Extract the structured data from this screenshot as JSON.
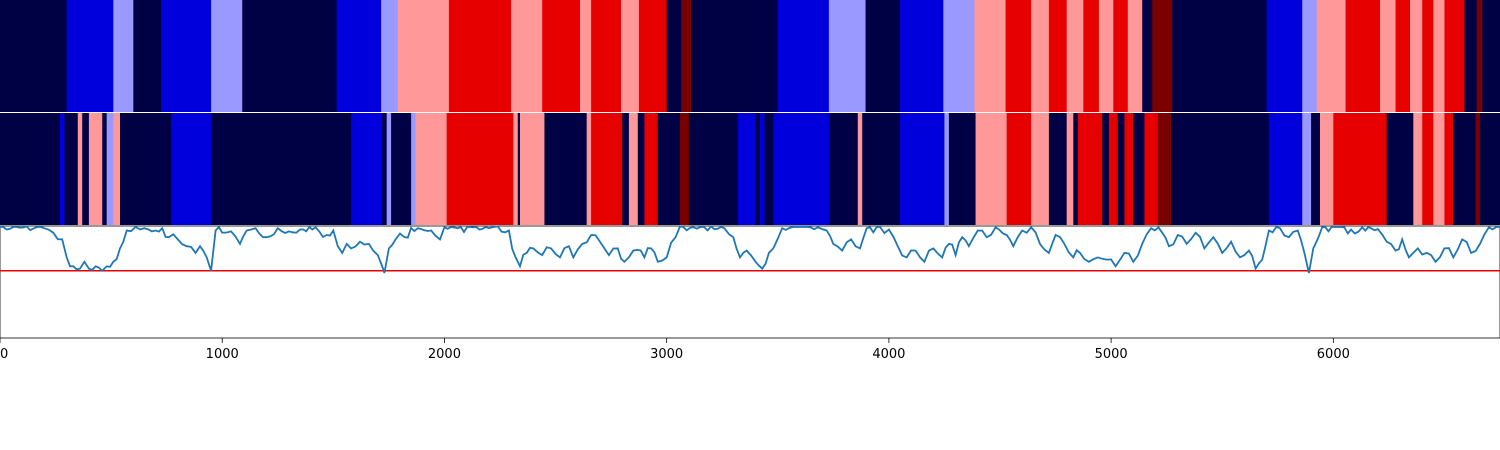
{
  "chart_data": {
    "type": "heatmap",
    "title": "",
    "xlabel": "",
    "ylabel": "",
    "xlim": [
      0,
      6750
    ],
    "grid": false,
    "legend": "none",
    "x_ticks": [
      0,
      1000,
      2000,
      3000,
      4000,
      5000,
      6000
    ],
    "x_tick_labels": [
      "0",
      "1000",
      "2000",
      "3000",
      "4000",
      "5000",
      "6000"
    ],
    "state_colors": {
      "0": "#000045",
      "1": "#0000dd",
      "2": "#9999ff",
      "3": "#ff9999",
      "4": "#e60000",
      "5": "#7a0000"
    },
    "tracks": [
      {
        "segments": [
          [
            0,
            300,
            0
          ],
          [
            300,
            510,
            1
          ],
          [
            510,
            600,
            2
          ],
          [
            600,
            725,
            0
          ],
          [
            725,
            950,
            1
          ],
          [
            950,
            1090,
            2
          ],
          [
            1090,
            1515,
            0
          ],
          [
            1515,
            1715,
            1
          ],
          [
            1715,
            1790,
            2
          ],
          [
            1790,
            2020,
            3
          ],
          [
            2020,
            2300,
            4
          ],
          [
            2300,
            2440,
            3
          ],
          [
            2440,
            2610,
            4
          ],
          [
            2610,
            2660,
            3
          ],
          [
            2660,
            2795,
            4
          ],
          [
            2795,
            2875,
            3
          ],
          [
            2875,
            3000,
            4
          ],
          [
            3000,
            3065,
            0
          ],
          [
            3065,
            3110,
            5
          ],
          [
            3110,
            3500,
            0
          ],
          [
            3500,
            3730,
            1
          ],
          [
            3730,
            3895,
            2
          ],
          [
            3895,
            4050,
            0
          ],
          [
            4050,
            4245,
            1
          ],
          [
            4245,
            4385,
            2
          ],
          [
            4385,
            4525,
            3
          ],
          [
            4525,
            4640,
            4
          ],
          [
            4640,
            4720,
            3
          ],
          [
            4720,
            4800,
            4
          ],
          [
            4800,
            4875,
            3
          ],
          [
            4875,
            4945,
            4
          ],
          [
            4945,
            5010,
            3
          ],
          [
            5010,
            5075,
            4
          ],
          [
            5075,
            5140,
            3
          ],
          [
            5140,
            5185,
            0
          ],
          [
            5185,
            5275,
            5
          ],
          [
            5275,
            5700,
            0
          ],
          [
            5700,
            5860,
            1
          ],
          [
            5860,
            5925,
            2
          ],
          [
            5925,
            6055,
            3
          ],
          [
            6055,
            6210,
            4
          ],
          [
            6210,
            6280,
            3
          ],
          [
            6280,
            6345,
            4
          ],
          [
            6345,
            6400,
            3
          ],
          [
            6400,
            6450,
            4
          ],
          [
            6450,
            6500,
            3
          ],
          [
            6500,
            6590,
            4
          ],
          [
            6590,
            6645,
            0
          ],
          [
            6645,
            6670,
            5
          ],
          [
            6670,
            6750,
            0
          ]
        ]
      },
      {
        "segments": [
          [
            0,
            270,
            0
          ],
          [
            270,
            290,
            1
          ],
          [
            290,
            350,
            0
          ],
          [
            350,
            370,
            3
          ],
          [
            370,
            400,
            0
          ],
          [
            400,
            460,
            3
          ],
          [
            460,
            480,
            0
          ],
          [
            480,
            510,
            2
          ],
          [
            510,
            540,
            3
          ],
          [
            540,
            770,
            0
          ],
          [
            770,
            950,
            1
          ],
          [
            950,
            1580,
            0
          ],
          [
            1580,
            1720,
            1
          ],
          [
            1720,
            1740,
            0
          ],
          [
            1740,
            1760,
            2
          ],
          [
            1760,
            1850,
            0
          ],
          [
            1850,
            1870,
            2
          ],
          [
            1870,
            2010,
            3
          ],
          [
            2010,
            2310,
            4
          ],
          [
            2310,
            2330,
            3
          ],
          [
            2330,
            2340,
            0
          ],
          [
            2340,
            2450,
            3
          ],
          [
            2450,
            2640,
            0
          ],
          [
            2640,
            2660,
            3
          ],
          [
            2660,
            2800,
            4
          ],
          [
            2800,
            2830,
            0
          ],
          [
            2830,
            2870,
            3
          ],
          [
            2870,
            2900,
            0
          ],
          [
            2900,
            2960,
            4
          ],
          [
            2960,
            3060,
            0
          ],
          [
            3060,
            3100,
            5
          ],
          [
            3100,
            3320,
            0
          ],
          [
            3320,
            3400,
            1
          ],
          [
            3400,
            3420,
            0
          ],
          [
            3420,
            3440,
            1
          ],
          [
            3440,
            3480,
            0
          ],
          [
            3480,
            3730,
            1
          ],
          [
            3730,
            3860,
            0
          ],
          [
            3860,
            3880,
            3
          ],
          [
            3880,
            4050,
            0
          ],
          [
            4050,
            4250,
            1
          ],
          [
            4250,
            4270,
            2
          ],
          [
            4270,
            4390,
            0
          ],
          [
            4390,
            4530,
            3
          ],
          [
            4530,
            4640,
            4
          ],
          [
            4640,
            4720,
            3
          ],
          [
            4720,
            4800,
            0
          ],
          [
            4800,
            4830,
            3
          ],
          [
            4830,
            4850,
            0
          ],
          [
            4850,
            4960,
            4
          ],
          [
            4960,
            4990,
            0
          ],
          [
            4990,
            5030,
            4
          ],
          [
            5030,
            5060,
            0
          ],
          [
            5060,
            5100,
            4
          ],
          [
            5100,
            5150,
            0
          ],
          [
            5150,
            5210,
            4
          ],
          [
            5210,
            5270,
            5
          ],
          [
            5270,
            5710,
            0
          ],
          [
            5710,
            5860,
            1
          ],
          [
            5860,
            5900,
            2
          ],
          [
            5900,
            5940,
            0
          ],
          [
            5940,
            6000,
            3
          ],
          [
            6000,
            6240,
            4
          ],
          [
            6240,
            6360,
            0
          ],
          [
            6360,
            6400,
            3
          ],
          [
            6400,
            6450,
            4
          ],
          [
            6450,
            6500,
            3
          ],
          [
            6500,
            6540,
            4
          ],
          [
            6540,
            6640,
            0
          ],
          [
            6640,
            6660,
            5
          ],
          [
            6660,
            6750,
            0
          ]
        ]
      }
    ],
    "signal": {
      "ylim": [
        -1.5,
        1.0
      ],
      "threshold": 0,
      "threshold_color": "#e60000",
      "line_color": "#1f77b4",
      "points": [
        [
          0,
          0.98
        ],
        [
          120,
          0.99
        ],
        [
          200,
          0.95
        ],
        [
          240,
          0.85
        ],
        [
          280,
          0.7
        ],
        [
          300,
          0.3
        ],
        [
          330,
          0.1
        ],
        [
          360,
          0.05
        ],
        [
          380,
          0.2
        ],
        [
          400,
          0.05
        ],
        [
          430,
          0.1
        ],
        [
          460,
          0.0
        ],
        [
          480,
          0.1
        ],
        [
          510,
          0.2
        ],
        [
          540,
          0.5
        ],
        [
          570,
          0.9
        ],
        [
          610,
          0.98
        ],
        [
          650,
          0.95
        ],
        [
          700,
          0.9
        ],
        [
          730,
          0.95
        ],
        [
          760,
          0.75
        ],
        [
          800,
          0.7
        ],
        [
          840,
          0.55
        ],
        [
          880,
          0.4
        ],
        [
          900,
          0.55
        ],
        [
          930,
          0.3
        ],
        [
          950,
          0.0
        ],
        [
          970,
          0.9
        ],
        [
          1000,
          0.85
        ],
        [
          1040,
          0.88
        ],
        [
          1080,
          0.6
        ],
        [
          1110,
          0.9
        ],
        [
          1150,
          0.95
        ],
        [
          1200,
          0.75
        ],
        [
          1250,
          0.95
        ],
        [
          1300,
          0.88
        ],
        [
          1350,
          0.92
        ],
        [
          1420,
          0.97
        ],
        [
          1470,
          0.8
        ],
        [
          1500,
          0.9
        ],
        [
          1520,
          0.55
        ],
        [
          1540,
          0.4
        ],
        [
          1560,
          0.6
        ],
        [
          1580,
          0.5
        ],
        [
          1620,
          0.65
        ],
        [
          1660,
          0.6
        ],
        [
          1700,
          0.35
        ],
        [
          1720,
          0.1
        ],
        [
          1730,
          -0.05
        ],
        [
          1750,
          0.5
        ],
        [
          1780,
          0.7
        ],
        [
          1820,
          0.75
        ],
        [
          1880,
          0.95
        ],
        [
          1940,
          0.9
        ],
        [
          1980,
          0.7
        ],
        [
          2000,
          0.97
        ],
        [
          2060,
          0.95
        ],
        [
          2130,
          0.97
        ],
        [
          2200,
          0.95
        ],
        [
          2240,
          0.99
        ],
        [
          2290,
          0.9
        ],
        [
          2320,
          0.3
        ],
        [
          2340,
          0.1
        ],
        [
          2370,
          0.4
        ],
        [
          2400,
          0.5
        ],
        [
          2440,
          0.35
        ],
        [
          2480,
          0.5
        ],
        [
          2520,
          0.3
        ],
        [
          2560,
          0.55
        ],
        [
          2580,
          0.3
        ],
        [
          2620,
          0.6
        ],
        [
          2660,
          0.8
        ],
        [
          2700,
          0.65
        ],
        [
          2740,
          0.35
        ],
        [
          2780,
          0.5
        ],
        [
          2810,
          0.2
        ],
        [
          2850,
          0.45
        ],
        [
          2900,
          0.3
        ],
        [
          2930,
          0.5
        ],
        [
          2960,
          0.2
        ],
        [
          3000,
          0.3
        ],
        [
          3040,
          0.75
        ],
        [
          3060,
          0.99
        ],
        [
          3120,
          0.97
        ],
        [
          3200,
          0.99
        ],
        [
          3260,
          0.95
        ],
        [
          3300,
          0.75
        ],
        [
          3330,
          0.3
        ],
        [
          3360,
          0.45
        ],
        [
          3400,
          0.2
        ],
        [
          3430,
          0.05
        ],
        [
          3460,
          0.4
        ],
        [
          3480,
          0.5
        ],
        [
          3520,
          0.95
        ],
        [
          3600,
          0.98
        ],
        [
          3680,
          0.97
        ],
        [
          3720,
          0.9
        ],
        [
          3750,
          0.6
        ],
        [
          3790,
          0.45
        ],
        [
          3830,
          0.7
        ],
        [
          3870,
          0.5
        ],
        [
          3900,
          0.95
        ],
        [
          3960,
          0.98
        ],
        [
          4000,
          0.92
        ],
        [
          4040,
          0.55
        ],
        [
          4080,
          0.3
        ],
        [
          4120,
          0.45
        ],
        [
          4160,
          0.2
        ],
        [
          4200,
          0.5
        ],
        [
          4240,
          0.3
        ],
        [
          4270,
          0.6
        ],
        [
          4300,
          0.35
        ],
        [
          4330,
          0.75
        ],
        [
          4360,
          0.55
        ],
        [
          4400,
          0.9
        ],
        [
          4440,
          0.75
        ],
        [
          4480,
          0.97
        ],
        [
          4530,
          0.8
        ],
        [
          4560,
          0.55
        ],
        [
          4600,
          0.9
        ],
        [
          4640,
          0.97
        ],
        [
          4680,
          0.6
        ],
        [
          4720,
          0.4
        ],
        [
          4750,
          0.8
        ],
        [
          4790,
          0.6
        ],
        [
          4830,
          0.3
        ],
        [
          4860,
          0.4
        ],
        [
          4900,
          0.2
        ],
        [
          4940,
          0.3
        ],
        [
          4980,
          0.25
        ],
        [
          5020,
          0.1
        ],
        [
          5060,
          0.4
        ],
        [
          5100,
          0.2
        ],
        [
          5140,
          0.6
        ],
        [
          5180,
          0.95
        ],
        [
          5230,
          0.85
        ],
        [
          5260,
          0.55
        ],
        [
          5300,
          0.8
        ],
        [
          5340,
          0.6
        ],
        [
          5380,
          0.85
        ],
        [
          5420,
          0.5
        ],
        [
          5460,
          0.75
        ],
        [
          5500,
          0.4
        ],
        [
          5540,
          0.65
        ],
        [
          5580,
          0.3
        ],
        [
          5620,
          0.45
        ],
        [
          5650,
          0.05
        ],
        [
          5680,
          0.25
        ],
        [
          5710,
          0.9
        ],
        [
          5760,
          0.95
        ],
        [
          5800,
          0.75
        ],
        [
          5840,
          0.9
        ],
        [
          5870,
          0.4
        ],
        [
          5890,
          -0.05
        ],
        [
          5910,
          0.5
        ],
        [
          5950,
          0.97
        ],
        [
          6020,
          0.98
        ],
        [
          6080,
          0.92
        ],
        [
          6130,
          0.97
        ],
        [
          6200,
          0.93
        ],
        [
          6240,
          0.65
        ],
        [
          6280,
          0.45
        ],
        [
          6310,
          0.7
        ],
        [
          6340,
          0.3
        ],
        [
          6380,
          0.5
        ],
        [
          6420,
          0.4
        ],
        [
          6460,
          0.2
        ],
        [
          6500,
          0.5
        ],
        [
          6540,
          0.3
        ],
        [
          6580,
          0.7
        ],
        [
          6620,
          0.4
        ],
        [
          6660,
          0.6
        ],
        [
          6700,
          0.97
        ],
        [
          6750,
          0.98
        ]
      ]
    }
  }
}
